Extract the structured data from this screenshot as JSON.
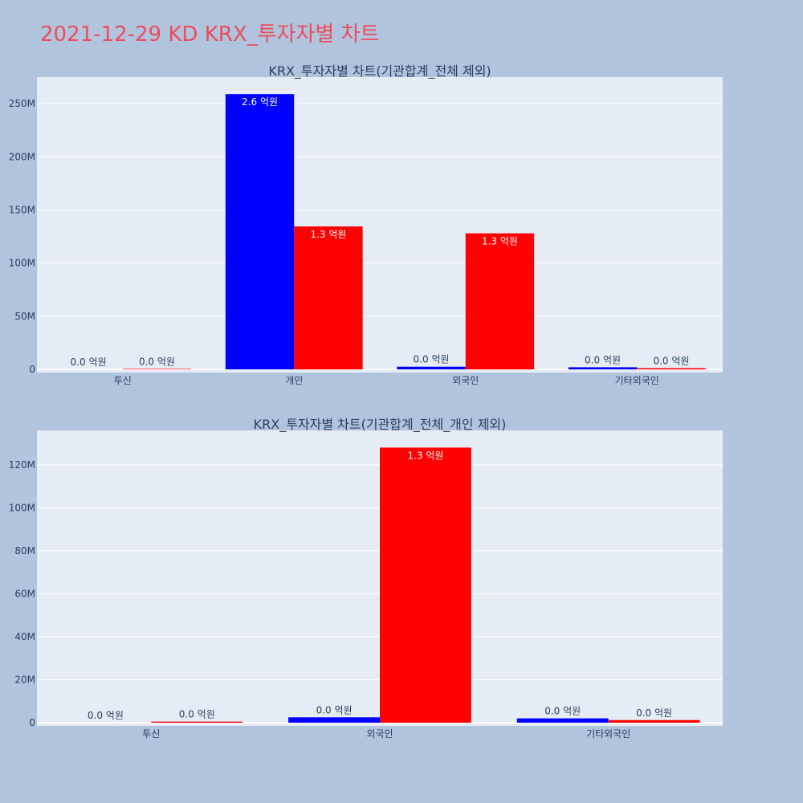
{
  "page": {
    "title": "2021-12-29 KD KRX_투자자별 차트"
  },
  "colors": {
    "background": "#b0c4de",
    "plot_background": "#e5ecf6",
    "title": "#ef4b5c",
    "series_a": "#0000ff",
    "series_b": "#ff0000"
  },
  "chart_data": [
    {
      "type": "bar",
      "title": "KRX_투자자별 차트(기관합계_전체 제외)",
      "categories": [
        "투신",
        "개인",
        "외국인",
        "기타외국인"
      ],
      "series": [
        {
          "color": "#0000ff",
          "values": [
            0,
            259000000,
            2500000,
            2000000
          ],
          "labels": [
            "0.0 억원",
            "2.6 억원",
            "0.0 억원",
            "0.0 억원"
          ]
        },
        {
          "color": "#ff0000",
          "values": [
            500000,
            134500000,
            128000000,
            1200000
          ],
          "labels": [
            "0.0 억원",
            "1.3 억원",
            "1.3 억원",
            "0.0 억원"
          ]
        }
      ],
      "ylim": [
        -3000000,
        275000000
      ],
      "y_ticks": [
        0,
        50000000,
        100000000,
        150000000,
        200000000,
        250000000
      ],
      "y_tick_labels": [
        "0",
        "50M",
        "100M",
        "150M",
        "200M",
        "250M"
      ],
      "grid": true
    },
    {
      "type": "bar",
      "title": "KRX_투자자별 차트(기관합계_전체_개인 제외)",
      "categories": [
        "투신",
        "외국인",
        "기타외국인"
      ],
      "series": [
        {
          "color": "#0000ff",
          "values": [
            0,
            2500000,
            2000000
          ],
          "labels": [
            "0.0 억원",
            "0.0 억원",
            "0.0 억원"
          ]
        },
        {
          "color": "#ff0000",
          "values": [
            500000,
            128000000,
            1200000
          ],
          "labels": [
            "0.0 억원",
            "1.3 억원",
            "0.0 억원"
          ]
        }
      ],
      "ylim": [
        -1500000,
        136000000
      ],
      "y_ticks": [
        0,
        20000000,
        40000000,
        60000000,
        80000000,
        100000000,
        120000000
      ],
      "y_tick_labels": [
        "0",
        "20M",
        "40M",
        "60M",
        "80M",
        "100M",
        "120M"
      ],
      "grid": true
    }
  ]
}
